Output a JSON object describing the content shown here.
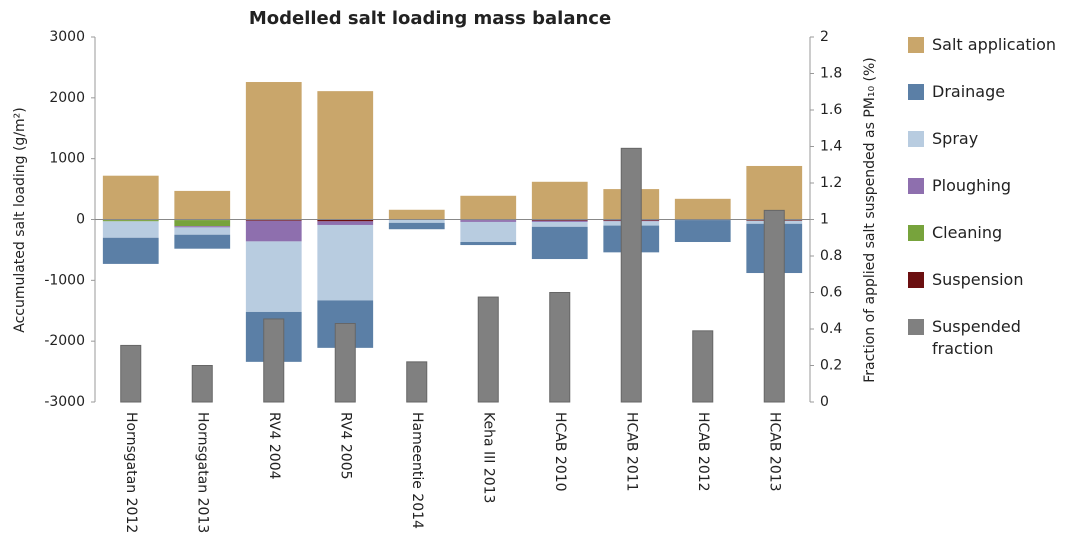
{
  "chart_data": {
    "type": "bar",
    "stacked": true,
    "title": "Modelled salt loading mass balance",
    "ylabel": "Accumulated salt loading (g/m²)",
    "y2label": "Fraction of applied salt suspended as PM₁₀ (%)",
    "categories": [
      "Hornsgatan 2012",
      "Hornsgatan 2013",
      "RV4 2004",
      "RV4 2005",
      "Hameentie 2014",
      "Keha III 2013",
      "HCAB 2010",
      "HCAB 2011",
      "HCAB 2012",
      "HCAB 2013"
    ],
    "series": [
      {
        "name": "Salt application",
        "color": "#c9a66b",
        "values": [
          720,
          470,
          2260,
          2110,
          160,
          390,
          620,
          500,
          340,
          880
        ]
      },
      {
        "name": "Drainage",
        "color": "#5b7fa6",
        "values": [
          -430,
          -230,
          -820,
          -780,
          -105,
          -50,
          -530,
          -440,
          -360,
          -810
        ]
      },
      {
        "name": "Spray",
        "color": "#b8cce0",
        "values": [
          -270,
          -120,
          -1160,
          -1240,
          -50,
          -330,
          -80,
          -70,
          0,
          -50
        ]
      },
      {
        "name": "Ploughing",
        "color": "#8e6fae",
        "values": [
          0,
          -20,
          -340,
          -60,
          0,
          -30,
          -20,
          -10,
          0,
          0
        ]
      },
      {
        "name": "Cleaning",
        "color": "#77a33c",
        "values": [
          -20,
          -100,
          0,
          0,
          0,
          0,
          0,
          0,
          0,
          0
        ]
      },
      {
        "name": "Suspension",
        "color": "#6b0f10",
        "values": [
          -10,
          -10,
          -20,
          -30,
          -5,
          -10,
          -20,
          -20,
          -10,
          -20
        ]
      },
      {
        "name": "Suspended fraction",
        "color": "#808080",
        "axis": "y2",
        "values": [
          0.31,
          0.2,
          0.455,
          0.43,
          0.22,
          0.575,
          0.6,
          1.39,
          0.39,
          1.05
        ]
      }
    ],
    "ylim": [
      -3000,
      3000
    ],
    "yticks": [
      -3000,
      -2000,
      -1000,
      0,
      1000,
      2000,
      3000
    ],
    "y2lim": [
      0,
      2
    ],
    "y2ticks": [
      0,
      0.2,
      0.4,
      0.6,
      0.8,
      1,
      1.2,
      1.4,
      1.6,
      1.8,
      2
    ],
    "grid": false,
    "legend": "right"
  }
}
